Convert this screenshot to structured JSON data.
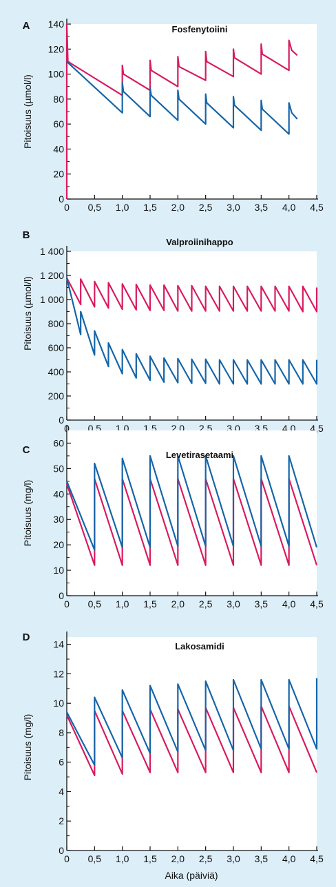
{
  "colors": {
    "background": "#dceef8",
    "plot_background": "#ffffff",
    "series_red": "#d81b60",
    "series_blue": "#1565a8",
    "axis": "#111111"
  },
  "x_axis_label": "Aika (päiviä)",
  "chart_data": [
    {
      "letter": "A",
      "title": "Fosfenytoiini",
      "type": "line",
      "ylabel": "Pitoisuus (µmol/l)",
      "xlim": [
        0,
        4.5
      ],
      "ylim": [
        0,
        140
      ],
      "xticks": [
        0,
        0.5,
        1.0,
        1.5,
        2.0,
        2.5,
        3.0,
        3.5,
        4.0,
        4.5
      ],
      "xtick_labels": [
        "0",
        "0,5",
        "1,0",
        "1,5",
        "2,0",
        "2,5",
        "3,0",
        "3,5",
        "4,0",
        "4,5"
      ],
      "yticks": [
        0,
        20,
        40,
        60,
        80,
        100,
        120,
        140
      ],
      "ytick_labels": [
        "0",
        "20",
        "40",
        "60",
        "80",
        "100",
        "120",
        "140"
      ],
      "series": [
        {
          "color": "red",
          "points": [
            [
              0,
              0
            ],
            [
              0,
              140
            ],
            [
              0.02,
              110
            ],
            [
              1.0,
              83
            ],
            [
              1.0,
              107
            ],
            [
              1.02,
              100
            ],
            [
              1.5,
              87
            ],
            [
              1.5,
              111
            ],
            [
              1.52,
              103
            ],
            [
              2.0,
              90
            ],
            [
              2.0,
              114
            ],
            [
              2.02,
              106
            ],
            [
              2.5,
              95
            ],
            [
              2.5,
              118
            ],
            [
              2.52,
              110
            ],
            [
              3.0,
              98
            ],
            [
              3.0,
              120
            ],
            [
              3.02,
              113
            ],
            [
              3.5,
              100
            ],
            [
              3.5,
              124
            ],
            [
              3.52,
              116
            ],
            [
              4.0,
              103
            ],
            [
              4.0,
              127
            ],
            [
              4.05,
              119
            ],
            [
              4.15,
              115
            ]
          ]
        },
        {
          "color": "blue",
          "points": [
            [
              0,
              110
            ],
            [
              1.0,
              69
            ],
            [
              1.0,
              93
            ],
            [
              1.02,
              86
            ],
            [
              1.5,
              66
            ],
            [
              1.5,
              89
            ],
            [
              1.52,
              83
            ],
            [
              2.0,
              63
            ],
            [
              2.0,
              87
            ],
            [
              2.02,
              80
            ],
            [
              2.5,
              60
            ],
            [
              2.5,
              84
            ],
            [
              2.52,
              77
            ],
            [
              3.0,
              57
            ],
            [
              3.0,
              82
            ],
            [
              3.02,
              75
            ],
            [
              3.5,
              55
            ],
            [
              3.5,
              79
            ],
            [
              3.52,
              72
            ],
            [
              4.0,
              52
            ],
            [
              4.0,
              77
            ],
            [
              4.05,
              69
            ],
            [
              4.15,
              64
            ]
          ]
        }
      ]
    },
    {
      "letter": "B",
      "title": "Valproiinihappo",
      "type": "line",
      "ylabel": "Pitoisuus (µmol/l)",
      "xlim": [
        0,
        4.5
      ],
      "ylim": [
        0,
        1400
      ],
      "xticks": [
        0,
        0.5,
        1.0,
        1.5,
        2.0,
        2.5,
        3.0,
        3.5,
        4.0,
        4.5
      ],
      "xtick_labels": [
        "0",
        "0,5",
        "1,0",
        "1,5",
        "2,0",
        "2,5",
        "3,0",
        "3,5",
        "4,0",
        "4,5"
      ],
      "yticks": [
        0,
        200,
        400,
        600,
        800,
        1000,
        1200,
        1400
      ],
      "ytick_labels": [
        "0",
        "200",
        "400",
        "600",
        "800",
        "1 000",
        "1 200",
        "1 400"
      ],
      "series": [
        {
          "color": "red",
          "points": [
            [
              0,
              1180
            ],
            [
              0.25,
              960
            ],
            [
              0.25,
              1170
            ],
            [
              0.5,
              940
            ],
            [
              0.5,
              1150
            ],
            [
              0.75,
              930
            ],
            [
              0.75,
              1140
            ],
            [
              1.0,
              920
            ],
            [
              1.0,
              1130
            ],
            [
              1.25,
              915
            ],
            [
              1.25,
              1125
            ],
            [
              1.5,
              910
            ],
            [
              1.5,
              1120
            ],
            [
              1.75,
              910
            ],
            [
              1.75,
              1120
            ],
            [
              2.0,
              905
            ],
            [
              2.0,
              1115
            ],
            [
              2.25,
              905
            ],
            [
              2.25,
              1115
            ],
            [
              2.5,
              905
            ],
            [
              2.5,
              1110
            ],
            [
              2.75,
              905
            ],
            [
              2.75,
              1110
            ],
            [
              3.0,
              905
            ],
            [
              3.0,
              1110
            ],
            [
              3.25,
              905
            ],
            [
              3.25,
              1110
            ],
            [
              3.5,
              905
            ],
            [
              3.5,
              1110
            ],
            [
              3.75,
              905
            ],
            [
              3.75,
              1110
            ],
            [
              4.0,
              905
            ],
            [
              4.0,
              1110
            ],
            [
              4.25,
              900
            ],
            [
              4.25,
              1110
            ],
            [
              4.5,
              900
            ],
            [
              4.5,
              1100
            ]
          ]
        },
        {
          "color": "blue",
          "points": [
            [
              0,
              1180
            ],
            [
              0.25,
              710
            ],
            [
              0.25,
              900
            ],
            [
              0.5,
              540
            ],
            [
              0.5,
              740
            ],
            [
              0.75,
              445
            ],
            [
              0.75,
              640
            ],
            [
              1.0,
              385
            ],
            [
              1.0,
              585
            ],
            [
              1.25,
              350
            ],
            [
              1.25,
              550
            ],
            [
              1.5,
              330
            ],
            [
              1.5,
              530
            ],
            [
              1.75,
              315
            ],
            [
              1.75,
              515
            ],
            [
              2.0,
              310
            ],
            [
              2.0,
              510
            ],
            [
              2.25,
              305
            ],
            [
              2.25,
              505
            ],
            [
              2.5,
              305
            ],
            [
              2.5,
              505
            ],
            [
              2.75,
              300
            ],
            [
              2.75,
              500
            ],
            [
              3.0,
              300
            ],
            [
              3.0,
              500
            ],
            [
              3.25,
              300
            ],
            [
              3.25,
              500
            ],
            [
              3.5,
              300
            ],
            [
              3.5,
              500
            ],
            [
              3.75,
              300
            ],
            [
              3.75,
              500
            ],
            [
              4.0,
              300
            ],
            [
              4.0,
              500
            ],
            [
              4.25,
              300
            ],
            [
              4.25,
              500
            ],
            [
              4.5,
              300
            ],
            [
              4.5,
              500
            ]
          ]
        }
      ]
    },
    {
      "letter": "C",
      "title": "Levetirasetaami",
      "type": "line",
      "ylabel": "Pitoisuus (mg/l)",
      "xlim": [
        0,
        4.5
      ],
      "ylim": [
        0,
        65
      ],
      "xticks": [
        0,
        0.5,
        1.0,
        1.5,
        2.0,
        2.5,
        3.0,
        3.5,
        4.0,
        4.5
      ],
      "xtick_labels": [
        "0",
        "0,5",
        "1,0",
        "1,5",
        "2,0",
        "2,5",
        "3,0",
        "3,5",
        "4,0",
        "4,5"
      ],
      "yticks": [
        0,
        10,
        20,
        30,
        40,
        50,
        60
      ],
      "ytick_labels": [
        "0",
        "10",
        "20",
        "30",
        "40",
        "50",
        "60"
      ],
      "series": [
        {
          "color": "red",
          "points": [
            [
              0,
              44
            ],
            [
              0.5,
              12
            ],
            [
              0.5,
              46
            ],
            [
              1.0,
              12
            ],
            [
              1.0,
              46
            ],
            [
              1.5,
              12
            ],
            [
              1.5,
              46
            ],
            [
              2.0,
              12
            ],
            [
              2.0,
              46
            ],
            [
              2.5,
              12
            ],
            [
              2.5,
              46
            ],
            [
              3.0,
              12
            ],
            [
              3.0,
              46
            ],
            [
              3.5,
              12
            ],
            [
              3.5,
              46
            ],
            [
              4.0,
              12
            ],
            [
              4.0,
              46
            ],
            [
              4.5,
              12
            ]
          ]
        },
        {
          "color": "blue",
          "points": [
            [
              0,
              45
            ],
            [
              0.5,
              18
            ],
            [
              0.5,
              52
            ],
            [
              1.0,
              19
            ],
            [
              1.0,
              54
            ],
            [
              1.5,
              19
            ],
            [
              1.5,
              55
            ],
            [
              2.0,
              19.5
            ],
            [
              2.0,
              55
            ],
            [
              2.5,
              19.5
            ],
            [
              2.5,
              55
            ],
            [
              3.0,
              19.5
            ],
            [
              3.0,
              55
            ],
            [
              3.5,
              19.5
            ],
            [
              3.5,
              55
            ],
            [
              4.0,
              19.5
            ],
            [
              4.0,
              55
            ],
            [
              4.5,
              19
            ]
          ]
        }
      ]
    },
    {
      "letter": "D",
      "title": "Lakosamidi",
      "type": "line",
      "ylabel": "Pitoisuus (mg/l)",
      "xlim": [
        0,
        4.5
      ],
      "ylim": [
        0,
        14.5
      ],
      "xticks": [
        0,
        0.5,
        1.0,
        1.5,
        2.0,
        2.5,
        3.0,
        3.5,
        4.0,
        4.5
      ],
      "xtick_labels": [
        "0",
        "0,5",
        "1,0",
        "1,5",
        "2,0",
        "2,5",
        "3,0",
        "3,5",
        "4,0",
        "4,5"
      ],
      "yticks": [
        0,
        2,
        4,
        6,
        8,
        10,
        12,
        14
      ],
      "ytick_labels": [
        "0",
        "2",
        "4",
        "6",
        "8",
        "10",
        "12",
        "14"
      ],
      "series": [
        {
          "color": "red",
          "points": [
            [
              0,
              9.2
            ],
            [
              0.5,
              5.1
            ],
            [
              0.5,
              9.5
            ],
            [
              1.0,
              5.2
            ],
            [
              1.0,
              9.5
            ],
            [
              1.5,
              5.3
            ],
            [
              1.5,
              9.6
            ],
            [
              2.0,
              5.3
            ],
            [
              2.0,
              9.6
            ],
            [
              2.5,
              5.3
            ],
            [
              2.5,
              9.7
            ],
            [
              3.0,
              5.3
            ],
            [
              3.0,
              9.7
            ],
            [
              3.5,
              5.3
            ],
            [
              3.5,
              9.8
            ],
            [
              4.0,
              5.3
            ],
            [
              4.0,
              9.8
            ],
            [
              4.5,
              5.3
            ]
          ]
        },
        {
          "color": "blue",
          "points": [
            [
              0,
              9.4
            ],
            [
              0.5,
              5.8
            ],
            [
              0.5,
              10.4
            ],
            [
              1.0,
              6.3
            ],
            [
              1.0,
              10.9
            ],
            [
              1.5,
              6.6
            ],
            [
              1.5,
              11.2
            ],
            [
              2.0,
              6.7
            ],
            [
              2.0,
              11.3
            ],
            [
              2.5,
              6.8
            ],
            [
              2.5,
              11.5
            ],
            [
              3.0,
              6.8
            ],
            [
              3.0,
              11.6
            ],
            [
              3.5,
              6.9
            ],
            [
              3.5,
              11.6
            ],
            [
              4.0,
              6.9
            ],
            [
              4.0,
              11.6
            ],
            [
              4.5,
              6.9
            ],
            [
              4.5,
              11.7
            ]
          ]
        }
      ]
    }
  ]
}
